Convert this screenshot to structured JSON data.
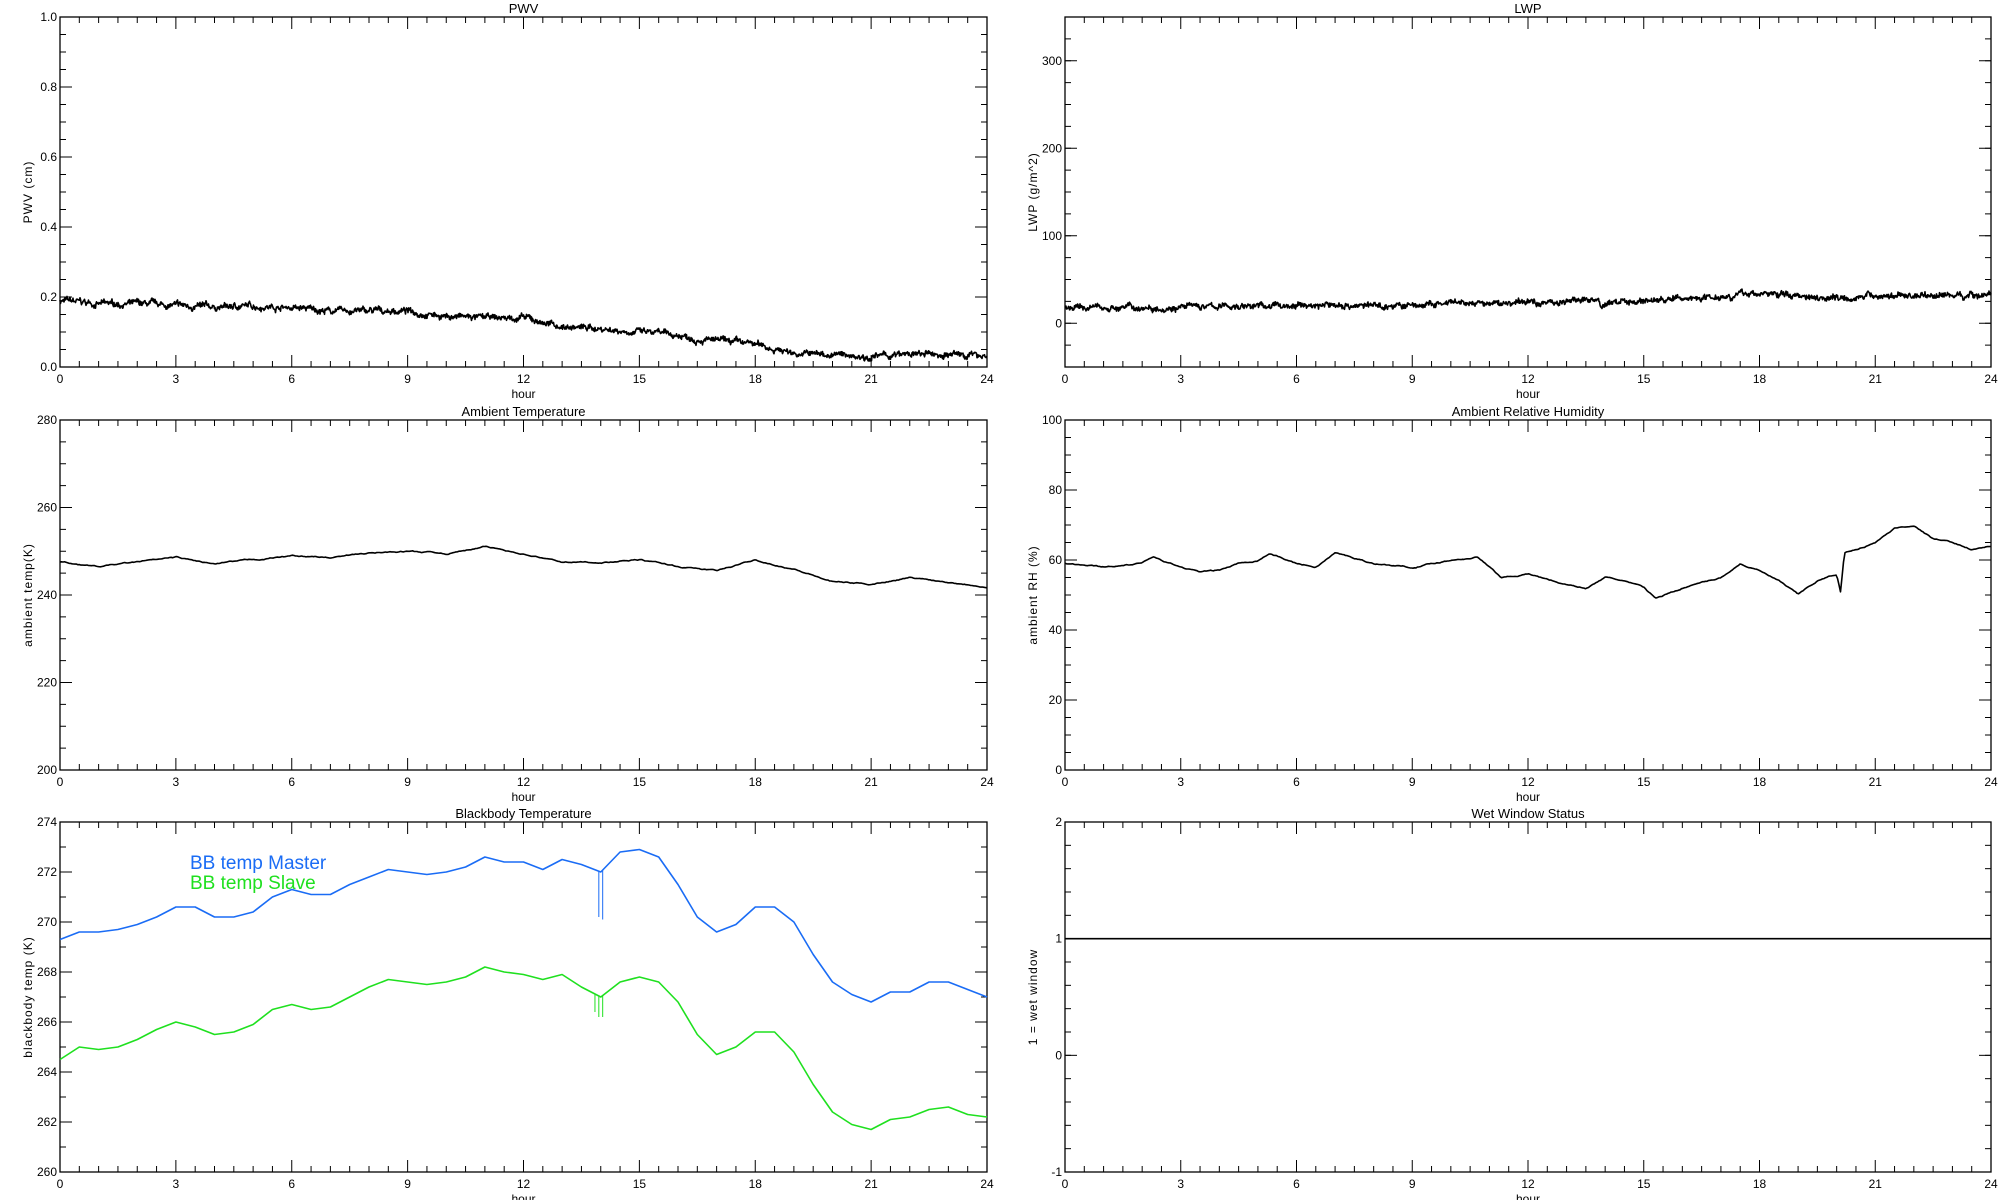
{
  "colors": {
    "master": "#1a6cf5",
    "slave": "#1fe01f",
    "line": "#000000"
  },
  "chart_data": [
    {
      "id": "pwv",
      "type": "line",
      "title": "PWV",
      "xlabel": "hour",
      "ylabel": "PWV (cm)",
      "xlim": [
        0,
        24
      ],
      "ylim": [
        0.0,
        1.0
      ],
      "xticks": [
        "0",
        "3",
        "6",
        "9",
        "12",
        "15",
        "18",
        "21",
        "24"
      ],
      "yticks": [
        "0.0",
        "0.2",
        "0.4",
        "0.6",
        "0.8",
        "1.0"
      ],
      "noisy": true,
      "series": [
        {
          "color": "#000000",
          "x": [
            0,
            1,
            2,
            3,
            4,
            5,
            6,
            7,
            8,
            9,
            10,
            11,
            12,
            13,
            14,
            15,
            16,
            17,
            18,
            19,
            20,
            21,
            22,
            23,
            24
          ],
          "y": [
            0.19,
            0.18,
            0.18,
            0.175,
            0.17,
            0.175,
            0.17,
            0.16,
            0.16,
            0.16,
            0.145,
            0.14,
            0.14,
            0.115,
            0.11,
            0.1,
            0.09,
            0.075,
            0.065,
            0.04,
            0.035,
            0.03,
            0.035,
            0.035,
            0.035
          ]
        }
      ]
    },
    {
      "id": "lwp",
      "type": "line",
      "title": "LWP",
      "xlabel": "hour",
      "ylabel": "LWP (g/m^2)",
      "xlim": [
        0,
        24
      ],
      "ylim": [
        -50,
        350
      ],
      "xticks": [
        "0",
        "3",
        "6",
        "9",
        "12",
        "15",
        "18",
        "21",
        "24"
      ],
      "yticks": [
        "0",
        "100",
        "200",
        "300"
      ],
      "noisy": true,
      "series": [
        {
          "color": "#000000",
          "x": [
            0,
            1,
            2,
            3,
            4,
            5,
            6,
            7,
            8,
            9,
            10,
            11,
            12,
            13,
            13.8,
            13.9,
            14.1,
            15,
            16,
            17,
            18,
            19,
            20,
            21,
            22,
            23,
            24
          ],
          "y": [
            17,
            18,
            18,
            19,
            19,
            20,
            20,
            21,
            20,
            20,
            22,
            22,
            24,
            25,
            28,
            15,
            24,
            26,
            28,
            32,
            34,
            32,
            30,
            31,
            32,
            32,
            33
          ]
        }
      ]
    },
    {
      "id": "ambient-temp",
      "type": "line",
      "title": "Ambient Temperature",
      "xlabel": "hour",
      "ylabel": "ambient temp(K)",
      "xlim": [
        0,
        24
      ],
      "ylim": [
        200,
        280
      ],
      "xticks": [
        "0",
        "3",
        "6",
        "9",
        "12",
        "15",
        "18",
        "21",
        "24"
      ],
      "yticks": [
        "200",
        "220",
        "240",
        "260",
        "280"
      ],
      "series": [
        {
          "color": "#000000",
          "x": [
            0,
            1,
            2,
            3,
            4,
            5,
            6,
            7,
            8,
            9,
            10,
            11,
            12,
            13,
            14,
            15,
            16,
            17,
            18,
            19,
            20,
            21,
            22,
            23,
            24
          ],
          "y": [
            247.5,
            246.5,
            247.5,
            248.5,
            247,
            248,
            249,
            248.5,
            249.5,
            250,
            249.5,
            251,
            249.5,
            247.5,
            247.5,
            248,
            246.5,
            245.5,
            248,
            246,
            243,
            242.5,
            244,
            243,
            242
          ]
        }
      ]
    },
    {
      "id": "ambient-rh",
      "type": "line",
      "title": "Ambient Relative Humidity",
      "xlabel": "hour",
      "ylabel": "ambient RH (%)",
      "xlim": [
        0,
        24
      ],
      "ylim": [
        0,
        100
      ],
      "xticks": [
        "0",
        "3",
        "6",
        "9",
        "12",
        "15",
        "18",
        "21",
        "24"
      ],
      "yticks": [
        "0",
        "20",
        "40",
        "60",
        "80",
        "100"
      ],
      "series": [
        {
          "color": "#000000",
          "x": [
            0,
            1,
            2,
            2.3,
            3,
            3.5,
            4,
            4.5,
            5,
            5.3,
            6,
            6.5,
            7,
            8,
            9,
            10,
            10.7,
            11,
            11.3,
            12,
            13,
            13.5,
            14,
            14.5,
            15,
            15.3,
            16,
            17,
            17.5,
            18,
            18.5,
            19,
            19.5,
            20,
            20.1,
            20.2,
            21,
            21.5,
            22,
            22.5,
            23,
            23.5,
            24
          ],
          "y": [
            59,
            58,
            59,
            61,
            58,
            56.5,
            57,
            59,
            60,
            62,
            59,
            58,
            62,
            59,
            58,
            60,
            61,
            58,
            55,
            56,
            53,
            52,
            55,
            54,
            52,
            49,
            52,
            55,
            59,
            57,
            54,
            50,
            54,
            56,
            51,
            62,
            65,
            69,
            70,
            66,
            65,
            63,
            64
          ]
        }
      ]
    },
    {
      "id": "bb-temp",
      "type": "line",
      "title": "Blackbody Temperature",
      "xlabel": "hour",
      "ylabel": "blackbody temp (K)",
      "xlim": [
        0,
        24
      ],
      "ylim": [
        260,
        274
      ],
      "xticks": [
        "0",
        "3",
        "6",
        "9",
        "12",
        "15",
        "18",
        "21",
        "24"
      ],
      "yticks": [
        "260",
        "262",
        "264",
        "266",
        "268",
        "270",
        "272",
        "274"
      ],
      "legend": {
        "placement": "top-left",
        "entries": [
          "BB temp Master",
          "BB temp Slave"
        ]
      },
      "series": [
        {
          "name": "BB temp Master",
          "color": "#1a6cf5",
          "x": [
            0,
            0.5,
            1,
            1.5,
            2,
            2.5,
            3,
            3.5,
            4,
            4.5,
            5,
            5.5,
            6,
            6.5,
            7,
            7.5,
            8,
            8.5,
            9,
            9.5,
            10,
            10.5,
            11,
            11.5,
            12,
            12.5,
            13,
            13.5,
            14,
            14.5,
            15,
            15.5,
            16,
            16.5,
            17,
            17.5,
            18,
            18.5,
            19,
            19.5,
            20,
            20.5,
            21,
            21.5,
            22,
            22.5,
            23,
            23.5,
            24
          ],
          "y": [
            269.3,
            269.6,
            269.6,
            269.7,
            269.9,
            270.2,
            270.6,
            270.6,
            270.2,
            270.2,
            270.4,
            271.0,
            271.3,
            271.1,
            271.1,
            271.5,
            271.8,
            272.1,
            272.0,
            271.9,
            272.0,
            272.2,
            272.6,
            272.4,
            272.4,
            272.1,
            272.5,
            272.3,
            272.0,
            272.8,
            272.9,
            272.6,
            271.5,
            270.2,
            269.6,
            269.9,
            270.6,
            270.6,
            270.0,
            268.7,
            267.6,
            267.1,
            266.8,
            267.2,
            267.2,
            267.6,
            267.6,
            267.3,
            267.0
          ],
          "dropouts": [
            {
              "x": 13.95,
              "y": 270.2
            },
            {
              "x": 14.05,
              "y": 270.1
            }
          ]
        },
        {
          "name": "BB temp Slave",
          "color": "#1fe01f",
          "x": [
            0,
            0.5,
            1,
            1.5,
            2,
            2.5,
            3,
            3.5,
            4,
            4.5,
            5,
            5.5,
            6,
            6.5,
            7,
            7.5,
            8,
            8.5,
            9,
            9.5,
            10,
            10.5,
            11,
            11.5,
            12,
            12.5,
            13,
            13.5,
            14,
            14.5,
            15,
            15.5,
            16,
            16.5,
            17,
            17.5,
            18,
            18.5,
            19,
            19.5,
            20,
            20.5,
            21,
            21.5,
            22,
            22.5,
            23,
            23.5,
            24
          ],
          "y": [
            264.5,
            265.0,
            264.9,
            265.0,
            265.3,
            265.7,
            266.0,
            265.8,
            265.5,
            265.6,
            265.9,
            266.5,
            266.7,
            266.5,
            266.6,
            267.0,
            267.4,
            267.7,
            267.6,
            267.5,
            267.6,
            267.8,
            268.2,
            268.0,
            267.9,
            267.7,
            267.9,
            267.4,
            267.0,
            267.6,
            267.8,
            267.6,
            266.8,
            265.5,
            264.7,
            265.0,
            265.6,
            265.6,
            264.8,
            263.5,
            262.4,
            261.9,
            261.7,
            262.1,
            262.2,
            262.5,
            262.6,
            262.3,
            262.2
          ],
          "dropouts": [
            {
              "x": 13.85,
              "y": 266.4
            },
            {
              "x": 13.95,
              "y": 266.2
            },
            {
              "x": 14.05,
              "y": 266.2
            }
          ]
        }
      ]
    },
    {
      "id": "wet-window",
      "type": "line",
      "title": "Wet Window Status",
      "xlabel": "hour",
      "ylabel": "1 = wet window",
      "xlim": [
        0,
        24
      ],
      "ylim": [
        -1,
        2
      ],
      "xticks": [
        "0",
        "3",
        "6",
        "9",
        "12",
        "15",
        "18",
        "21",
        "24"
      ],
      "yticks": [
        "-1",
        "0",
        "1",
        "2"
      ],
      "series": [
        {
          "color": "#000000",
          "x": [
            0,
            24
          ],
          "y": [
            1,
            1
          ]
        }
      ]
    }
  ]
}
